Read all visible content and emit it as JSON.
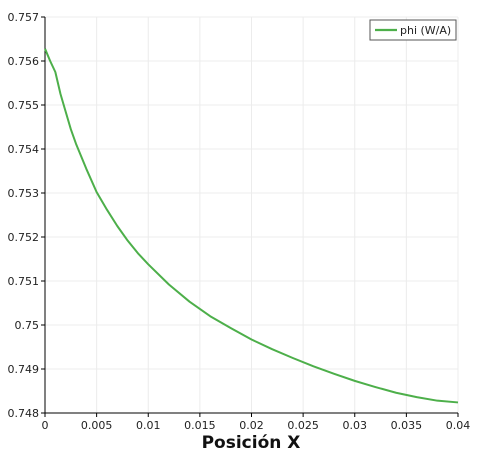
{
  "chart_data": {
    "type": "line",
    "title": "",
    "xlabel": "Posición X",
    "ylabel": "",
    "xlim": [
      0,
      0.04
    ],
    "ylim": [
      0.748,
      0.757
    ],
    "grid": true,
    "legend_position": "top-right",
    "x_ticks": [
      "0",
      "0.005",
      "0.01",
      "0.015",
      "0.02",
      "0.025",
      "0.03",
      "0.035",
      "0.04"
    ],
    "y_ticks": [
      "0.748",
      "0.749",
      "0.75",
      "0.751",
      "0.752",
      "0.753",
      "0.754",
      "0.755",
      "0.756",
      "0.757"
    ],
    "series": [
      {
        "name": "phi (W/A)",
        "color": "#4daf4a",
        "x": [
          0,
          0.0005,
          0.001,
          0.0015,
          0.002,
          0.0025,
          0.003,
          0.004,
          0.005,
          0.006,
          0.007,
          0.008,
          0.009,
          0.01,
          0.012,
          0.014,
          0.016,
          0.018,
          0.02,
          0.022,
          0.024,
          0.026,
          0.028,
          0.03,
          0.032,
          0.034,
          0.036,
          0.038,
          0.04
        ],
        "y": [
          0.75628,
          0.756,
          0.75575,
          0.75525,
          0.75485,
          0.75445,
          0.75412,
          0.75355,
          0.75302,
          0.75262,
          0.75225,
          0.75192,
          0.75163,
          0.75138,
          0.75092,
          0.75053,
          0.7502,
          0.74993,
          0.74967,
          0.74945,
          0.74925,
          0.74906,
          0.74889,
          0.74873,
          0.74859,
          0.74846,
          0.74836,
          0.74828,
          0.74824
        ]
      }
    ]
  }
}
